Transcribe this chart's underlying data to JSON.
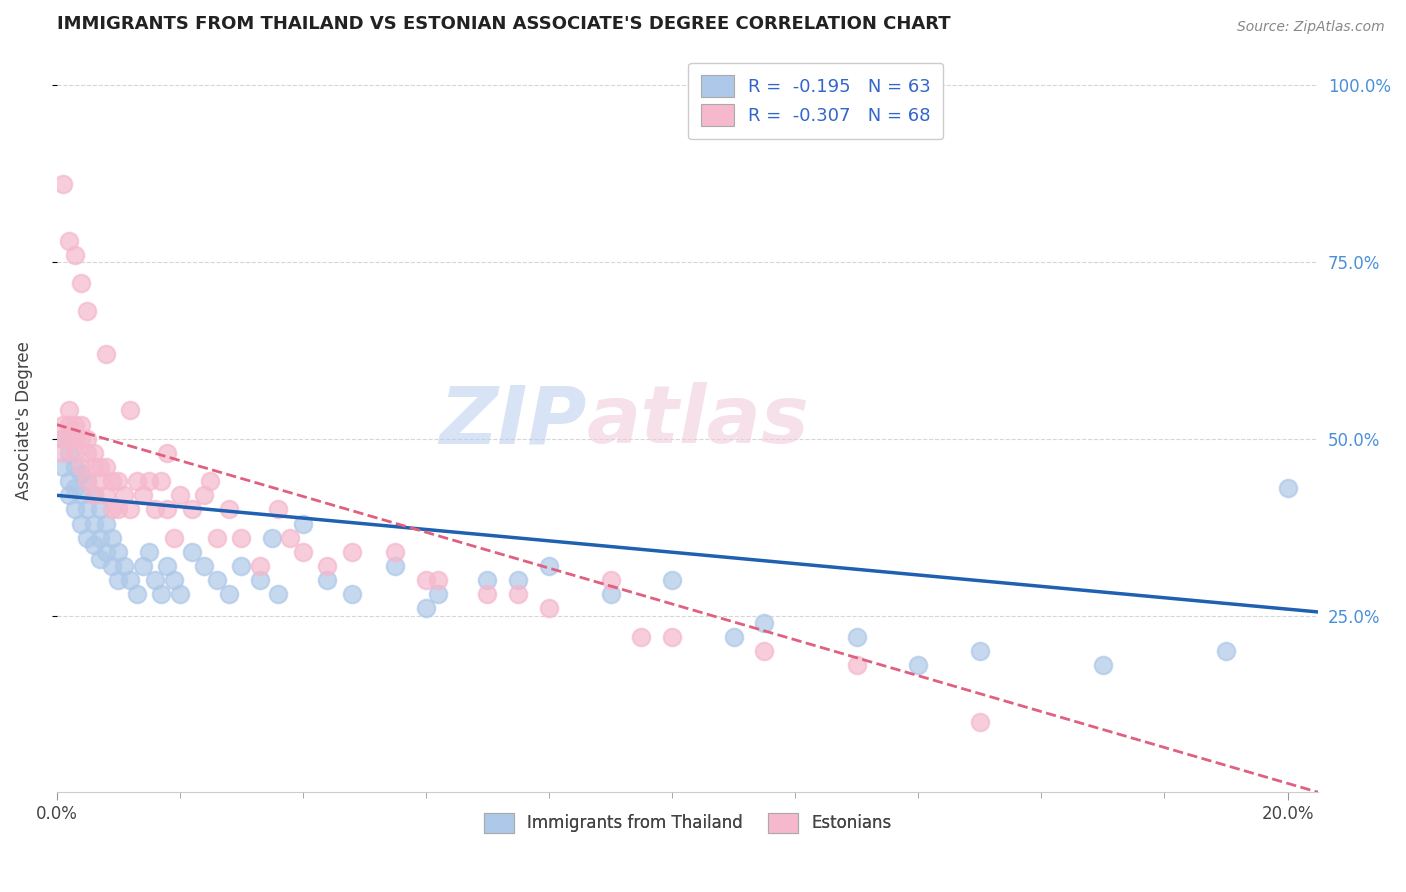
{
  "title": "IMMIGRANTS FROM THAILAND VS ESTONIAN ASSOCIATE'S DEGREE CORRELATION CHART",
  "source": "Source: ZipAtlas.com",
  "ylabel": "Associate's Degree",
  "right_yticks": [
    "100.0%",
    "75.0%",
    "50.0%",
    "25.0%"
  ],
  "right_ytick_vals": [
    1.0,
    0.75,
    0.5,
    0.25
  ],
  "legend_color1": "#adc8e8",
  "legend_color2": "#f5b8cc",
  "scatter_color_blue": "#adc8e8",
  "scatter_color_pink": "#f5b8cc",
  "trendline_blue": "#2060b0",
  "trendline_pink": "#e06080",
  "background_color": "#ffffff",
  "grid_color": "#cccccc",
  "title_color": "#222222",
  "axis_label_color": "#444444",
  "right_axis_color": "#4a90d9",
  "watermark_zip": "ZIP",
  "watermark_atlas": "atlas",
  "legend_label1": "Immigrants from Thailand",
  "legend_label2": "Estonians",
  "blue_scatter_x": [
    0.001,
    0.001,
    0.002,
    0.002,
    0.002,
    0.003,
    0.003,
    0.003,
    0.004,
    0.004,
    0.004,
    0.005,
    0.005,
    0.005,
    0.006,
    0.006,
    0.006,
    0.007,
    0.007,
    0.007,
    0.008,
    0.008,
    0.009,
    0.009,
    0.01,
    0.01,
    0.011,
    0.012,
    0.013,
    0.014,
    0.015,
    0.016,
    0.017,
    0.018,
    0.019,
    0.02,
    0.022,
    0.024,
    0.026,
    0.028,
    0.03,
    0.033,
    0.036,
    0.04,
    0.044,
    0.048,
    0.055,
    0.062,
    0.07,
    0.08,
    0.09,
    0.1,
    0.115,
    0.13,
    0.15,
    0.17,
    0.19,
    0.035,
    0.06,
    0.075,
    0.11,
    0.14,
    0.2
  ],
  "blue_scatter_y": [
    0.5,
    0.46,
    0.48,
    0.44,
    0.42,
    0.46,
    0.43,
    0.4,
    0.45,
    0.42,
    0.38,
    0.44,
    0.4,
    0.36,
    0.42,
    0.38,
    0.35,
    0.4,
    0.36,
    0.33,
    0.38,
    0.34,
    0.36,
    0.32,
    0.34,
    0.3,
    0.32,
    0.3,
    0.28,
    0.32,
    0.34,
    0.3,
    0.28,
    0.32,
    0.3,
    0.28,
    0.34,
    0.32,
    0.3,
    0.28,
    0.32,
    0.3,
    0.28,
    0.38,
    0.3,
    0.28,
    0.32,
    0.28,
    0.3,
    0.32,
    0.28,
    0.3,
    0.24,
    0.22,
    0.2,
    0.18,
    0.2,
    0.36,
    0.26,
    0.3,
    0.22,
    0.18,
    0.43
  ],
  "pink_scatter_x": [
    0.001,
    0.001,
    0.001,
    0.002,
    0.002,
    0.002,
    0.003,
    0.003,
    0.003,
    0.004,
    0.004,
    0.004,
    0.005,
    0.005,
    0.005,
    0.006,
    0.006,
    0.006,
    0.007,
    0.007,
    0.008,
    0.008,
    0.009,
    0.009,
    0.01,
    0.01,
    0.011,
    0.012,
    0.013,
    0.014,
    0.015,
    0.016,
    0.017,
    0.018,
    0.019,
    0.02,
    0.022,
    0.024,
    0.026,
    0.028,
    0.03,
    0.033,
    0.036,
    0.04,
    0.044,
    0.048,
    0.055,
    0.062,
    0.07,
    0.08,
    0.09,
    0.1,
    0.115,
    0.13,
    0.002,
    0.003,
    0.004,
    0.005,
    0.008,
    0.012,
    0.018,
    0.025,
    0.038,
    0.06,
    0.075,
    0.095,
    0.001,
    0.15
  ],
  "pink_scatter_y": [
    0.52,
    0.5,
    0.48,
    0.54,
    0.52,
    0.5,
    0.52,
    0.5,
    0.48,
    0.52,
    0.5,
    0.46,
    0.5,
    0.48,
    0.44,
    0.48,
    0.46,
    0.42,
    0.46,
    0.44,
    0.46,
    0.42,
    0.44,
    0.4,
    0.44,
    0.4,
    0.42,
    0.4,
    0.44,
    0.42,
    0.44,
    0.4,
    0.44,
    0.4,
    0.36,
    0.42,
    0.4,
    0.42,
    0.36,
    0.4,
    0.36,
    0.32,
    0.4,
    0.34,
    0.32,
    0.34,
    0.34,
    0.3,
    0.28,
    0.26,
    0.3,
    0.22,
    0.2,
    0.18,
    0.78,
    0.76,
    0.72,
    0.68,
    0.62,
    0.54,
    0.48,
    0.44,
    0.36,
    0.3,
    0.28,
    0.22,
    0.86,
    0.1
  ],
  "xlim": [
    0.0,
    0.205
  ],
  "ylim": [
    0.0,
    1.05
  ],
  "blue_trend": [
    0.0,
    0.205,
    0.42,
    0.255
  ],
  "pink_trend": [
    0.0,
    0.205,
    0.52,
    0.0
  ]
}
